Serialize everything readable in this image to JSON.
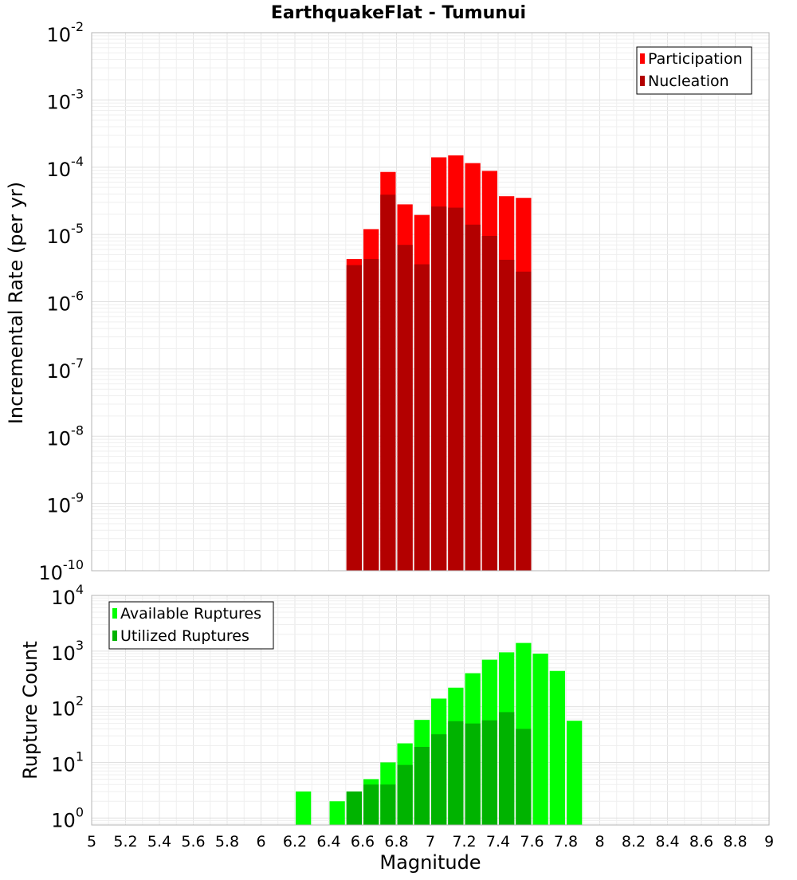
{
  "chart_data": [
    {
      "type": "bar",
      "title": "EarthquakeFlat - Tumunui",
      "xlabel": "Magnitude",
      "ylabel": "Incremental Rate (per yr)",
      "y_scale": "log",
      "ylim": [
        1e-10,
        0.01
      ],
      "xlim": [
        5.0,
        9.0
      ],
      "bin_width": 0.1,
      "y_ticks": [
        {
          "base": "10",
          "exp": "-10"
        },
        {
          "base": "10",
          "exp": "-9"
        },
        {
          "base": "10",
          "exp": "-8"
        },
        {
          "base": "10",
          "exp": "-7"
        },
        {
          "base": "10",
          "exp": "-6"
        },
        {
          "base": "10",
          "exp": "-5"
        },
        {
          "base": "10",
          "exp": "-4"
        },
        {
          "base": "10",
          "exp": "-3"
        },
        {
          "base": "10",
          "exp": "-2"
        }
      ],
      "legend_position": "top-right",
      "grid": true,
      "x": [
        6.55,
        6.65,
        6.75,
        6.85,
        6.95,
        7.05,
        7.15,
        7.25,
        7.35,
        7.45,
        7.55
      ],
      "series": [
        {
          "name": "Participation",
          "color": "#ff0000",
          "values": [
            4.3e-06,
            1.2e-05,
            8.5e-05,
            2.8e-05,
            1.95e-05,
            0.00014,
            0.00015,
            0.000115,
            8.8e-05,
            3.7e-05,
            3.5e-05
          ]
        },
        {
          "name": "Nucleation",
          "color": "#b30000",
          "values": [
            3.5e-06,
            4.3e-06,
            3.9e-05,
            7e-06,
            3.6e-06,
            2.6e-05,
            2.5e-05,
            1.4e-05,
            9.5e-06,
            4.2e-06,
            2.8e-06
          ]
        }
      ]
    },
    {
      "type": "bar",
      "xlabel": "Magnitude",
      "ylabel": "Rupture Count",
      "y_scale": "log",
      "ylim": [
        0.75,
        10000
      ],
      "xlim": [
        5.0,
        9.0
      ],
      "bin_width": 0.1,
      "x_ticks": [
        "5",
        "5.2",
        "5.4",
        "5.6",
        "5.8",
        "6",
        "6.2",
        "6.4",
        "6.6",
        "6.8",
        "7",
        "7.2",
        "7.4",
        "7.6",
        "7.8",
        "8",
        "8.2",
        "8.4",
        "8.6",
        "8.8",
        "9"
      ],
      "y_ticks": [
        {
          "base": "10",
          "exp": "0"
        },
        {
          "base": "10",
          "exp": "1"
        },
        {
          "base": "10",
          "exp": "2"
        },
        {
          "base": "10",
          "exp": "3"
        },
        {
          "base": "10",
          "exp": "4"
        }
      ],
      "legend_position": "top-left",
      "grid": true,
      "x": [
        6.25,
        6.45,
        6.55,
        6.65,
        6.75,
        6.85,
        6.95,
        7.05,
        7.15,
        7.25,
        7.35,
        7.45,
        7.55,
        7.65,
        7.75,
        7.85
      ],
      "series": [
        {
          "name": "Available Ruptures",
          "color": "#00ff00",
          "values": [
            3,
            2,
            3,
            5,
            10,
            22,
            58,
            140,
            220,
            400,
            700,
            950,
            1400,
            900,
            440,
            56
          ]
        },
        {
          "name": "Utilized Ruptures",
          "color": "#00b300",
          "values": [
            0,
            0,
            3,
            4,
            4,
            9,
            19,
            32,
            55,
            50,
            57,
            80,
            40,
            0,
            0,
            0
          ]
        }
      ]
    }
  ]
}
